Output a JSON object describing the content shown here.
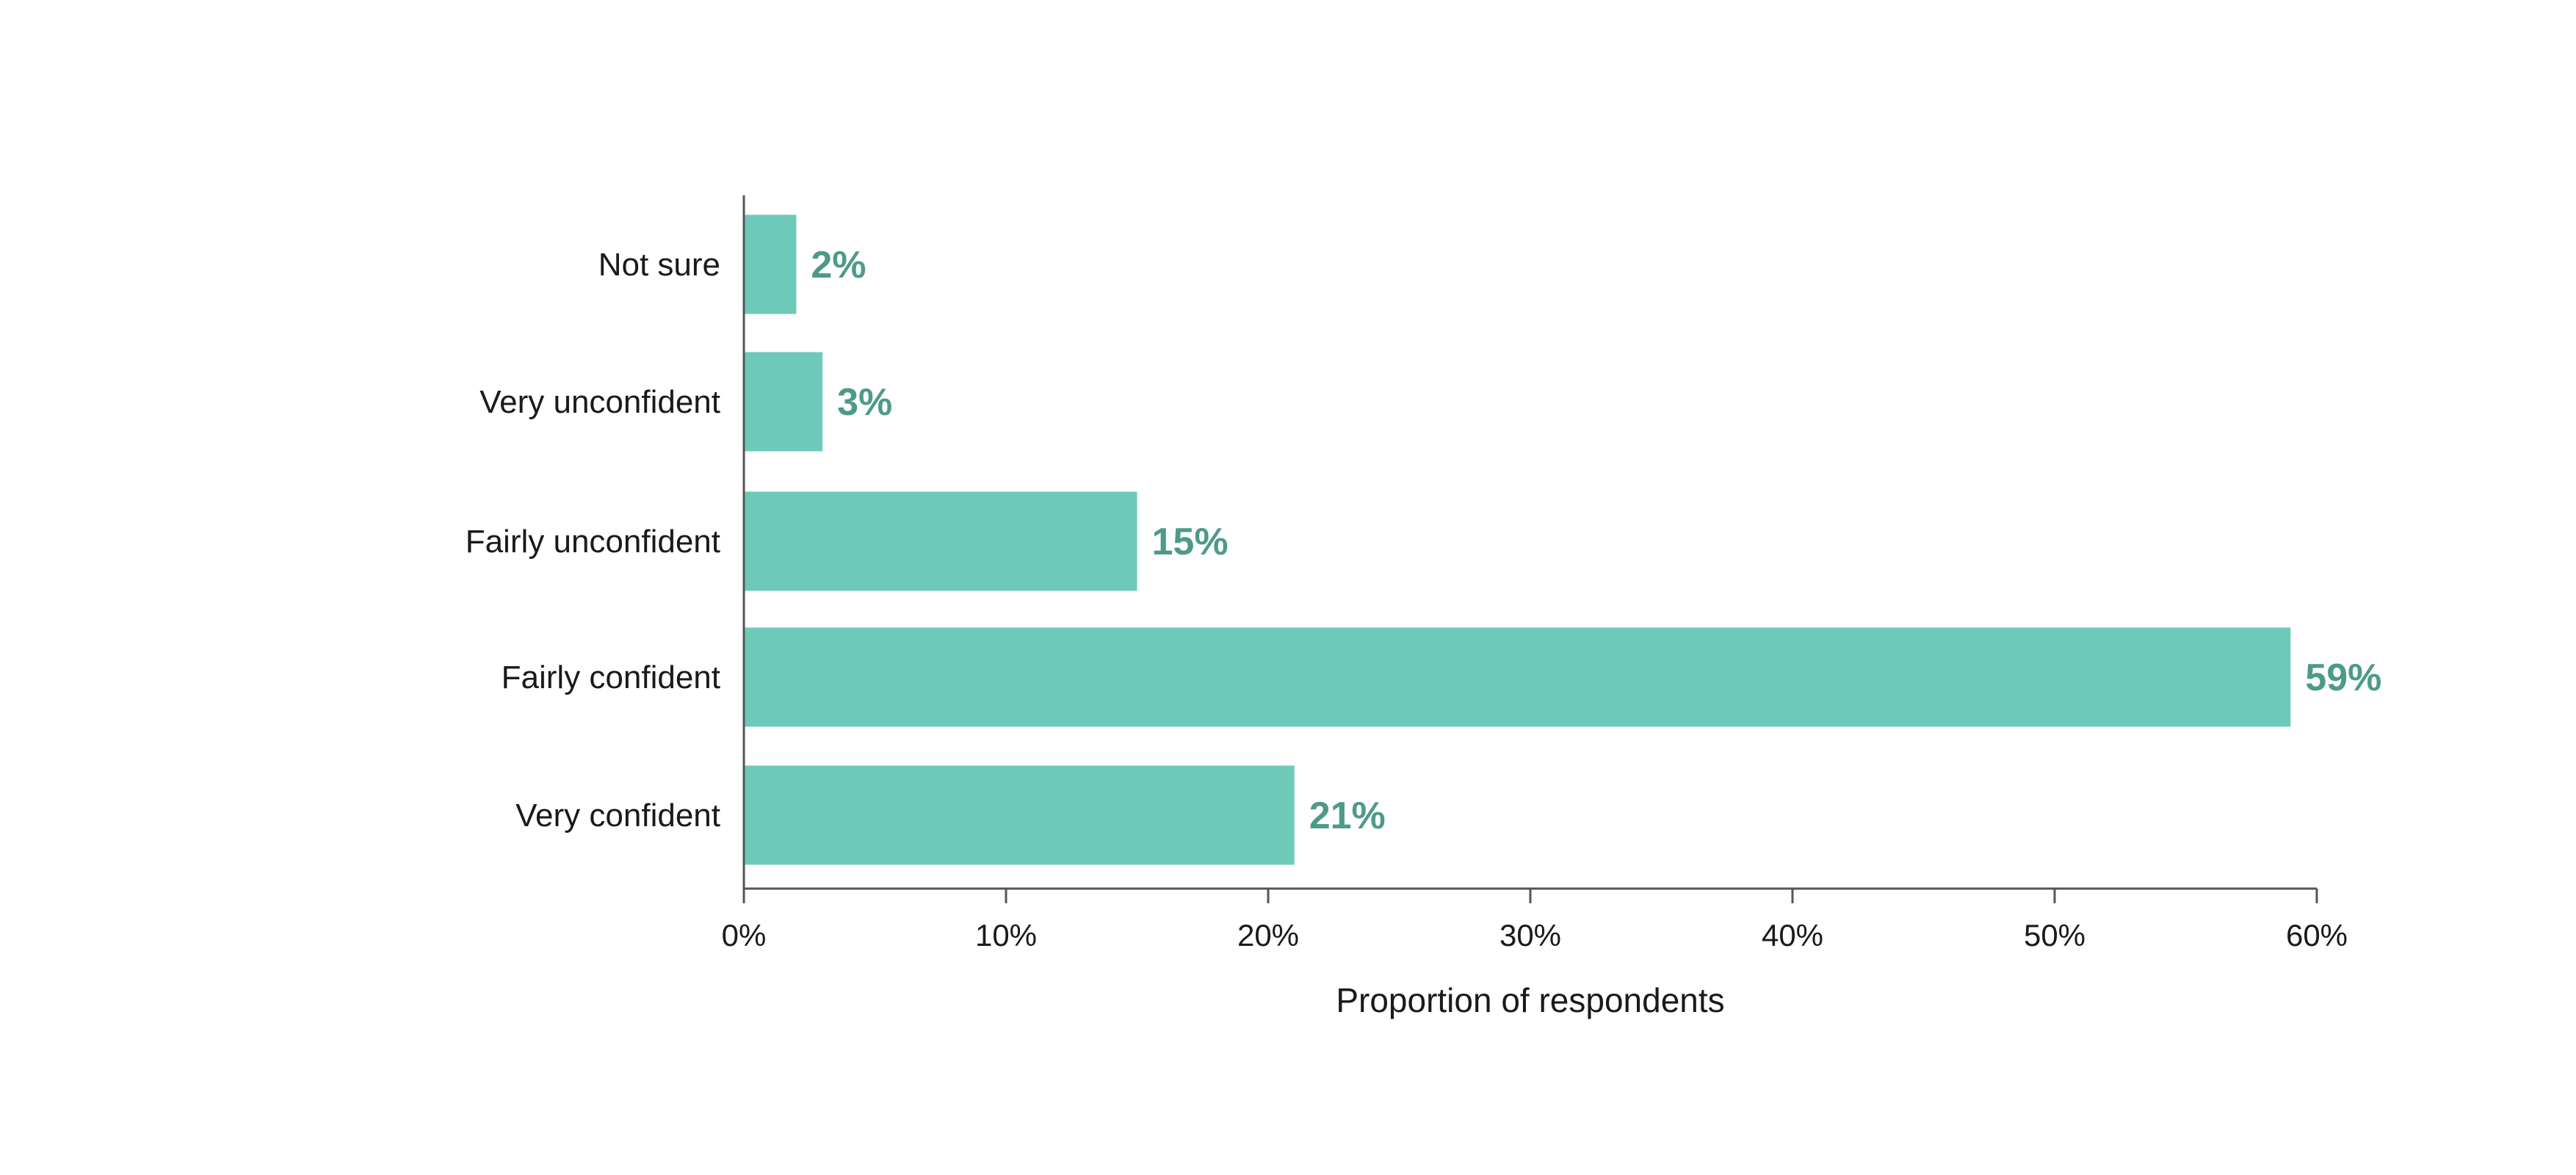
{
  "chart_data": {
    "type": "bar",
    "orientation": "horizontal",
    "categories": [
      "Not sure",
      "Very unconfident",
      "Fairly unconfident",
      "Fairly confident",
      "Very confident"
    ],
    "values": [
      2,
      3,
      15,
      59,
      21
    ],
    "value_labels": [
      "2%",
      "3%",
      "15%",
      "59%",
      "21%"
    ],
    "xlabel": "Proportion of respondents",
    "ylabel": "",
    "xlim": [
      0,
      60
    ],
    "x_ticks": [
      0,
      10,
      20,
      30,
      40,
      50,
      60
    ],
    "x_tick_labels": [
      "0%",
      "10%",
      "20%",
      "30%",
      "40%",
      "50%",
      "60%"
    ],
    "grid": false,
    "legend": "none",
    "colors": {
      "bar": "#6ecab8",
      "data_label": "#4e9a8a",
      "axis": "#555555",
      "text": "#1a1a1a"
    }
  }
}
